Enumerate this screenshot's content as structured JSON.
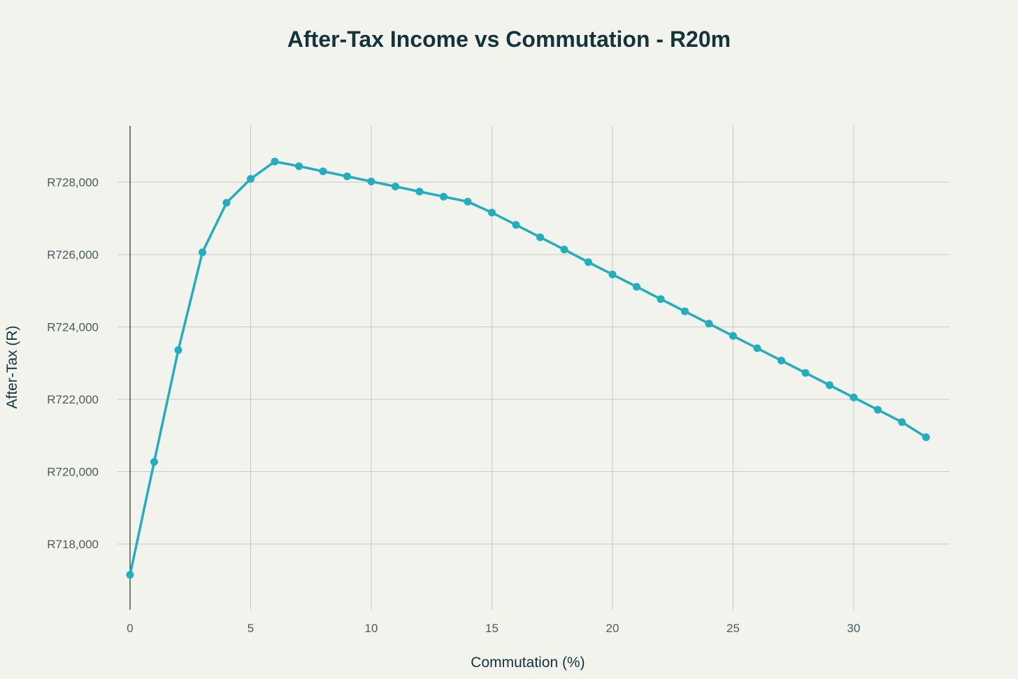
{
  "chart_data": {
    "type": "line",
    "title": "After-Tax Income vs Commutation - R20m",
    "xlabel": "Commutation (%)",
    "ylabel": "After-Tax (R)",
    "x_ticks": [
      0,
      5,
      10,
      15,
      20,
      25,
      30
    ],
    "y_ticks": [
      718000,
      720000,
      722000,
      724000,
      726000,
      728000
    ],
    "y_tick_labels": [
      "R718,000",
      "R720,000",
      "R722,000",
      "R724,000",
      "R726,000",
      "R728,000"
    ],
    "xlim": [
      -0.5,
      34
    ],
    "ylim": [
      716000,
      729600
    ],
    "grid": true,
    "line_color": "#21aebf",
    "x": [
      0,
      1,
      2,
      3,
      4,
      5,
      6,
      7,
      8,
      9,
      10,
      11,
      12,
      13,
      14,
      15,
      16,
      17,
      18,
      19,
      20,
      21,
      22,
      23,
      24,
      25,
      26,
      27,
      28,
      29,
      30,
      31,
      32,
      33
    ],
    "y": [
      717150,
      720270,
      723360,
      726060,
      727430,
      728090,
      728570,
      728440,
      728300,
      728160,
      728020,
      727880,
      727740,
      727600,
      727460,
      727160,
      726820,
      726480,
      726140,
      725790,
      725450,
      725110,
      724770,
      724430,
      724090,
      723750,
      723410,
      723070,
      722730,
      722390,
      722050,
      721710,
      721370,
      720950
    ]
  }
}
